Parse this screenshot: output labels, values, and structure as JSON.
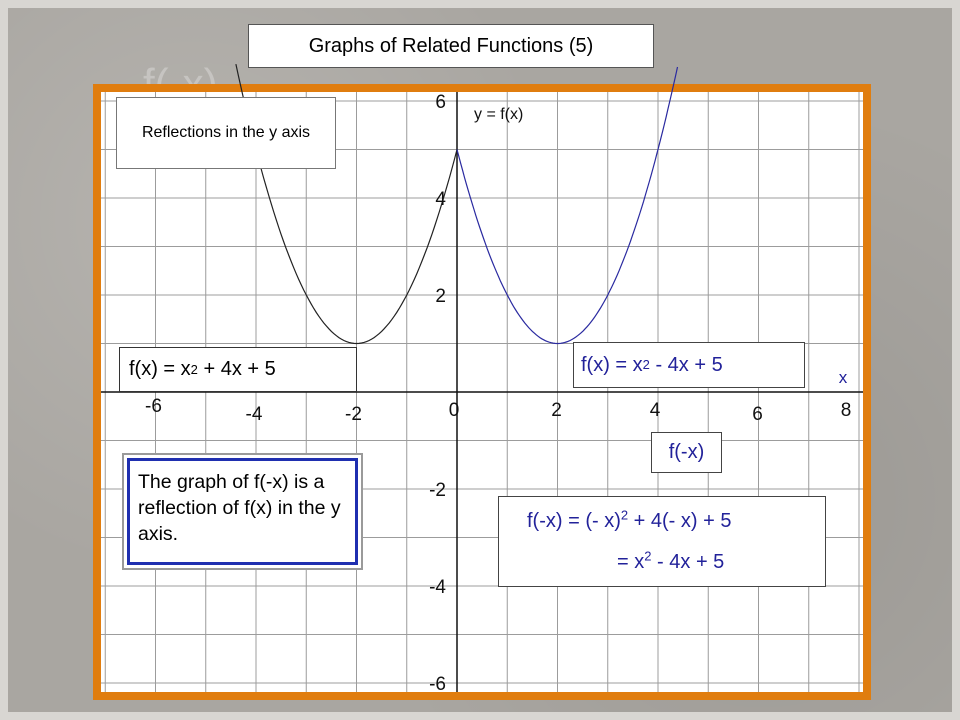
{
  "slide": {
    "title": "Graphs of Related Functions (5)",
    "watermark": "f(-x)",
    "subtitle_box": "Reflections in the y axis"
  },
  "graph": {
    "x_axis_label": "x",
    "curve_label": "y = f(x)",
    "x_ticks": [
      {
        "value": -6,
        "label": "-6"
      },
      {
        "value": -4,
        "label": "-4"
      },
      {
        "value": -2,
        "label": "-2"
      },
      {
        "value": 0,
        "label": "0"
      },
      {
        "value": 2,
        "label": "2"
      },
      {
        "value": 4,
        "label": "4"
      },
      {
        "value": 6,
        "label": "6"
      },
      {
        "value": 8,
        "label": "8"
      }
    ],
    "y_ticks": [
      {
        "value": 6,
        "label": "6"
      },
      {
        "value": 4,
        "label": "4"
      },
      {
        "value": 2,
        "label": "2"
      },
      {
        "value": -2,
        "label": "-2"
      },
      {
        "value": -4,
        "label": "-4"
      },
      {
        "value": -6,
        "label": "-6"
      }
    ],
    "x_range": [
      -8,
      8
    ],
    "y_range": [
      -7,
      7
    ],
    "curves": [
      {
        "name": "f(x) = x^2 + 4x + 5",
        "color": "#222222",
        "a": 1,
        "b": 4,
        "c": 5,
        "domain": [
          -6,
          0
        ]
      },
      {
        "name": "f(x) = x^2 - 4x + 5",
        "color": "#2a2aa0",
        "a": 1,
        "b": -4,
        "c": 5,
        "domain": [
          0,
          4.5
        ]
      }
    ]
  },
  "equations": {
    "left": {
      "pre": "f(x) = x",
      "exp": "2",
      "post": " + 4x + 5"
    },
    "right": {
      "pre": "f(x) = x",
      "exp": "2",
      "post": " - 4x + 5"
    },
    "fneg": "f(-x)",
    "deriv_line1": {
      "pre": "f(-x) = (- x)",
      "exp": "2",
      "post": " + 4(- x) + 5"
    },
    "deriv_line2": {
      "pre": "= x",
      "exp": "2",
      "post": " - 4x + 5"
    }
  },
  "explanation": "The graph of f(-x) is a reflection of f(x) in the y axis.",
  "colors": {
    "board_border": "#e07d0f",
    "grid": "#9c9c9c",
    "blue_text": "#22229a",
    "explain_border": "#1f2fb0"
  }
}
